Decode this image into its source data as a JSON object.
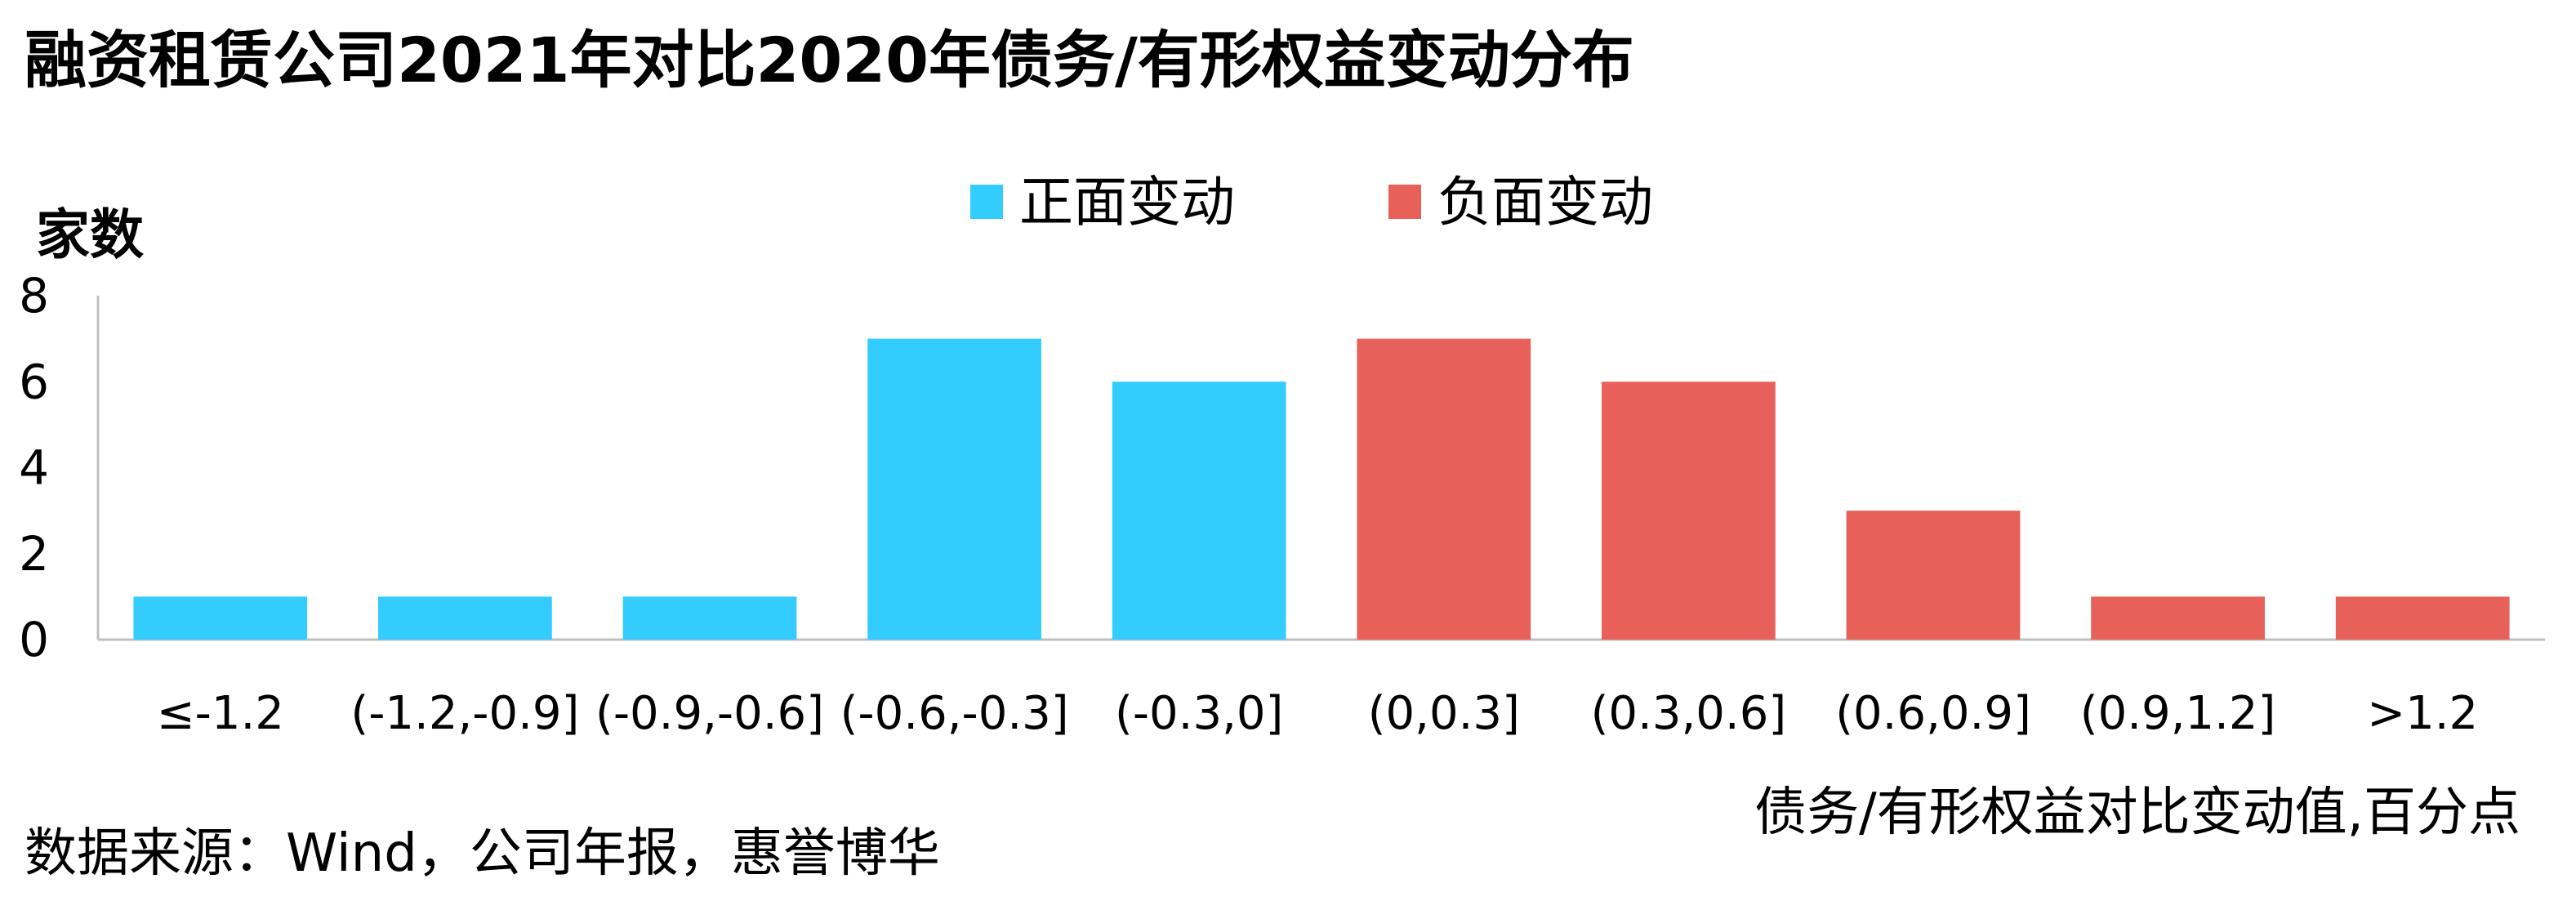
{
  "chart_data": {
    "type": "bar",
    "title": "融资租赁公司2021年对比2020年债务/有形权益变动分布",
    "ylabel": "家数",
    "xlabel": "债务/有形权益对比变动值,百分点",
    "source": "数据来源：Wind，公司年报，惠誉博华",
    "ylim": [
      0,
      8
    ],
    "yticks": [
      "0",
      "2",
      "4",
      "6",
      "8"
    ],
    "grid": false,
    "legend_position": "top-center",
    "categories": [
      "≤-1.2",
      "(-1.2,-0.9]",
      "(-0.9,-0.6]",
      "(-0.6,-0.3]",
      "(-0.3,0]",
      "(0,0.3]",
      "(0.3,0.6]",
      "(0.6,0.9]",
      "(0.9,1.2]",
      ">1.2"
    ],
    "series": [
      {
        "name": "正面变动",
        "color": "#33CCFF",
        "values": [
          1,
          1,
          1,
          7,
          6,
          null,
          null,
          null,
          null,
          null
        ]
      },
      {
        "name": "负面变动",
        "color": "#E8605A",
        "values": [
          null,
          null,
          null,
          null,
          null,
          7,
          6,
          3,
          1,
          1
        ]
      }
    ]
  }
}
